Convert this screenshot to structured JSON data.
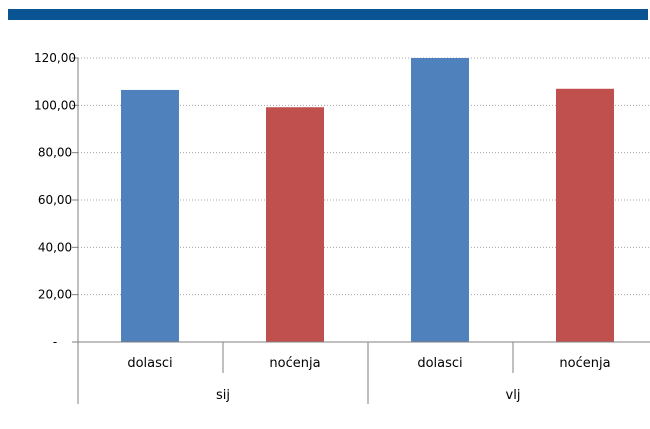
{
  "colors": {
    "header_band": "#0a5494",
    "dolasci": "#4f81bd",
    "nocenja": "#c0504d",
    "grid": "#a6a6a6",
    "axis": "#808080"
  },
  "chart_data": {
    "type": "bar",
    "categories": [
      "dolasci",
      "noćenja",
      "dolasci",
      "noćenja"
    ],
    "groups": [
      {
        "label": "sij",
        "categories": [
          "dolasci",
          "noćenja"
        ]
      },
      {
        "label": "vlj",
        "categories": [
          "dolasci",
          "noćenja"
        ]
      }
    ],
    "values": [
      106.5,
      99.2,
      120.0,
      107.0
    ],
    "ylim": [
      0,
      120
    ],
    "yticks": [
      0,
      20,
      40,
      60,
      80,
      100,
      120
    ],
    "ytick_labels": [
      "-",
      "20,00",
      "40,00",
      "60,00",
      "80,00",
      "100,00",
      "120,00"
    ],
    "grid": true,
    "legend": "none"
  }
}
